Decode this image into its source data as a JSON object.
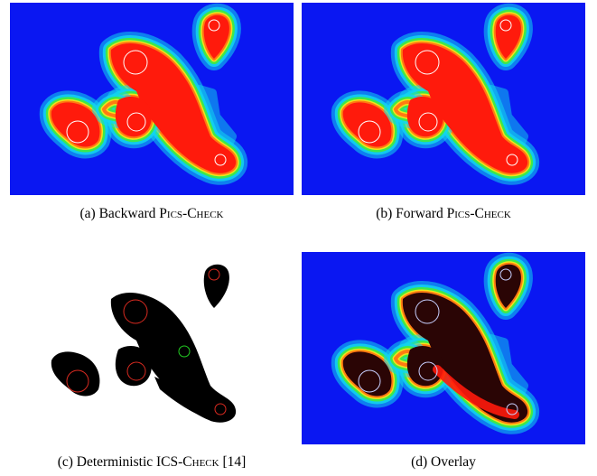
{
  "figure": {
    "panels": [
      {
        "id": "a",
        "label": "(a)",
        "text": "Backward",
        "method": "Pics-Check",
        "suffix": "",
        "style": "heatmap"
      },
      {
        "id": "b",
        "label": "(b)",
        "text": "Forward",
        "method": "Pics-Check",
        "suffix": "",
        "style": "heatmap"
      },
      {
        "id": "c",
        "label": "(c)",
        "text": "Deterministic",
        "method": "ICS-Check",
        "suffix": "[14]",
        "style": "binary"
      },
      {
        "id": "d",
        "label": "(d)",
        "text": "Overlay",
        "method": "",
        "suffix": "",
        "style": "overlay"
      }
    ],
    "colors": {
      "background": "#0a17f2",
      "cyan": "#12d6ee",
      "green": "#3ee84a",
      "yellow": "#f2e41a",
      "orange": "#ff7a12",
      "red": "#ff1a0c",
      "obstacle_black": "#000000",
      "circle_red": "#d82a20",
      "circle_white": "#ffffff",
      "circle_green": "#22cc22",
      "overlay_dark": "#2a0505"
    }
  }
}
